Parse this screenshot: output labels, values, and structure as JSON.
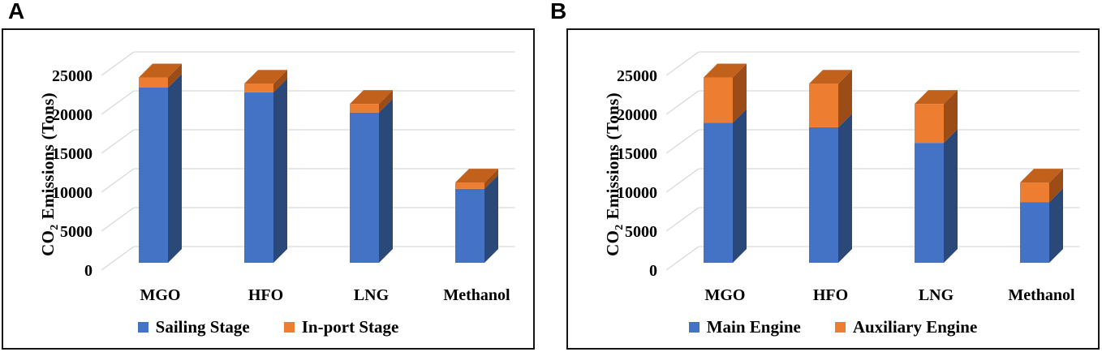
{
  "panels": [
    {
      "letter": "A",
      "ylabel_pre": "CO",
      "ylabel_sub": "2",
      "ylabel_post": "Emissions (Tons)"
    },
    {
      "letter": "B",
      "ylabel_pre": "CO",
      "ylabel_sub": "2",
      "ylabel_post": "Emissions (Tons)"
    }
  ],
  "colors": {
    "series_blue": "#4472C4",
    "series_blue_side": "#2A4878",
    "series_orange": "#ED7D31",
    "series_orange_side": "#9C4C16",
    "series_orange_top": "#C2611C",
    "gridline": "#D9D9D9",
    "panel_border": "#151515",
    "text": "#000000"
  },
  "chart_data": [
    {
      "type": "bar",
      "subtype": "stacked-3d-column",
      "panel": "A",
      "title": "",
      "categories": [
        "MGO",
        "HFO",
        "LNG",
        "Methanol"
      ],
      "series": [
        {
          "name": "Sailing Stage",
          "color": "#4472C4",
          "values": [
            22500,
            21900,
            19300,
            9500
          ]
        },
        {
          "name": "In-port Stage",
          "color": "#ED7D31",
          "values": [
            1300,
            1100,
            1100,
            800
          ]
        }
      ],
      "totals": [
        23800,
        23000,
        20400,
        10300
      ],
      "xlabel": "",
      "ylabel": "CO2 Emissions (Tons)",
      "ylim": [
        0,
        25000
      ],
      "y_ticks": [
        0,
        5000,
        10000,
        15000,
        20000,
        25000
      ],
      "grid": true,
      "legend_position": "bottom"
    },
    {
      "type": "bar",
      "subtype": "stacked-3d-column",
      "panel": "B",
      "title": "",
      "categories": [
        "MGO",
        "HFO",
        "LNG",
        "Methanol"
      ],
      "series": [
        {
          "name": "Main Engine",
          "color": "#4472C4",
          "values": [
            18000,
            17400,
            15400,
            7800
          ]
        },
        {
          "name": "Auxiliary Engine",
          "color": "#ED7D31",
          "values": [
            5800,
            5600,
            5000,
            2500
          ]
        }
      ],
      "totals": [
        23800,
        23000,
        20400,
        10300
      ],
      "xlabel": "",
      "ylabel": "CO2 Emissions (Tons)",
      "ylim": [
        0,
        25000
      ],
      "y_ticks": [
        0,
        5000,
        10000,
        15000,
        20000,
        25000
      ],
      "grid": true,
      "legend_position": "bottom"
    }
  ]
}
